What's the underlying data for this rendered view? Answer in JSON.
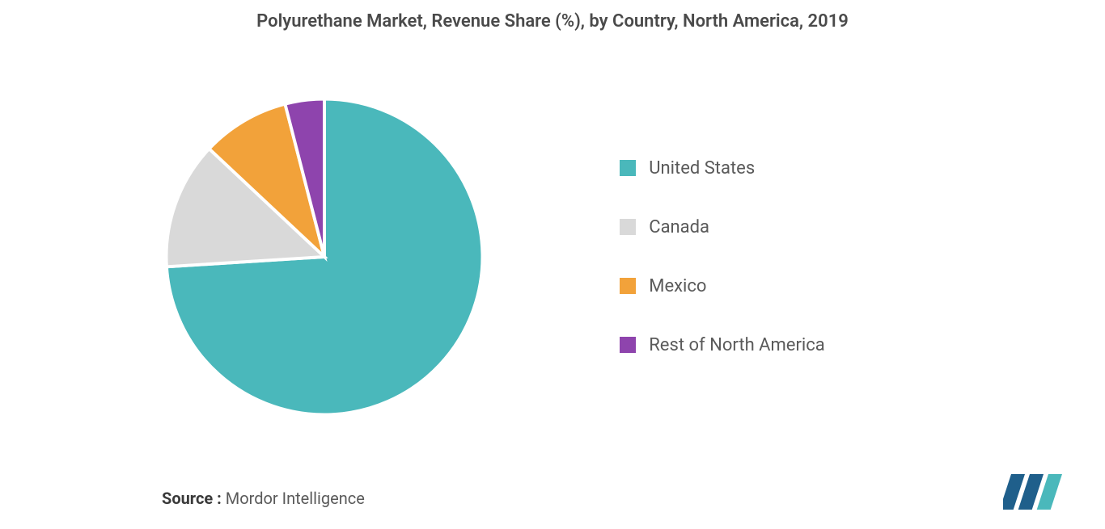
{
  "title": "Polyurethane Market, Revenue Share (%), by Country, North America, 2019",
  "chart": {
    "type": "pie",
    "start_angle_deg": -90,
    "direction": "clockwise",
    "stroke": {
      "color": "#ffffff",
      "width": 2
    },
    "background_color": "#ffffff",
    "slices": [
      {
        "label": "United States",
        "value": 74,
        "color": "#4ab8bb"
      },
      {
        "label": "Canada",
        "value": 13,
        "color": "#d9d9d9"
      },
      {
        "label": "Mexico",
        "value": 9,
        "color": "#f2a23a"
      },
      {
        "label": "Rest of North America",
        "value": 4,
        "color": "#8e44ad"
      }
    ]
  },
  "legend": {
    "position": "right",
    "fontsize": 22,
    "text_color": "#5a5a5a",
    "swatch_size": 20,
    "items": [
      {
        "label": "United States",
        "color": "#4ab8bb"
      },
      {
        "label": "Canada",
        "color": "#d9d9d9"
      },
      {
        "label": "Mexico",
        "color": "#f2a23a"
      },
      {
        "label": "Rest of North America",
        "color": "#8e44ad"
      }
    ]
  },
  "footer": {
    "source_label": "Source :",
    "source_value": "Mordor Intelligence"
  },
  "logo": {
    "bars": [
      "#1f5f8b",
      "#1f5f8b",
      "#4ab8bb"
    ],
    "skew_deg": -18
  },
  "typography": {
    "title_fontsize": 22,
    "title_weight": 600,
    "body_fontsize": 22,
    "footer_fontsize": 20,
    "font_family": "sans-serif",
    "title_color": "#4a4a4a"
  }
}
